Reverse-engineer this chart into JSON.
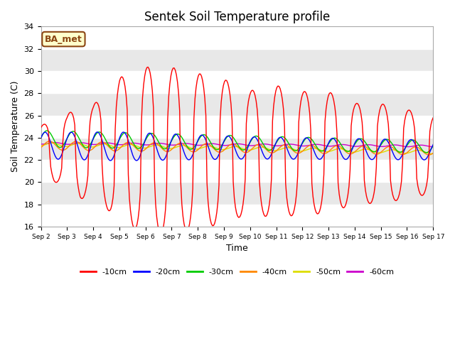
{
  "title": "Sentek Soil Temperature profile",
  "xlabel": "Time",
  "ylabel": "Soil Temperature (C)",
  "ylim": [
    16,
    34
  ],
  "xlim_days": [
    0,
    15
  ],
  "annotation": "BA_met",
  "background_color": "#ffffff",
  "plot_bg_color": "#e8e8e8",
  "band_color": "#ffffff",
  "series": {
    "-10cm": {
      "color": "#ff0000",
      "linewidth": 1.0
    },
    "-20cm": {
      "color": "#0000ff",
      "linewidth": 1.0
    },
    "-30cm": {
      "color": "#00cc00",
      "linewidth": 1.0
    },
    "-40cm": {
      "color": "#ff8800",
      "linewidth": 1.0
    },
    "-50cm": {
      "color": "#dddd00",
      "linewidth": 1.0
    },
    "-60cm": {
      "color": "#cc00cc",
      "linewidth": 1.0
    }
  },
  "yticks": [
    16,
    18,
    20,
    22,
    24,
    26,
    28,
    30,
    32,
    34
  ],
  "xtick_labels": [
    "Sep 2",
    "Sep 3",
    "Sep 4",
    "Sep 5",
    "Sep 6",
    "Sep 7",
    "Sep 8",
    "Sep 9",
    "Sep 10",
    "Sep 11",
    "Sep 12",
    "Sep 13",
    "Sep 14",
    "Sep 15",
    "Sep 16",
    "Sep 17"
  ]
}
